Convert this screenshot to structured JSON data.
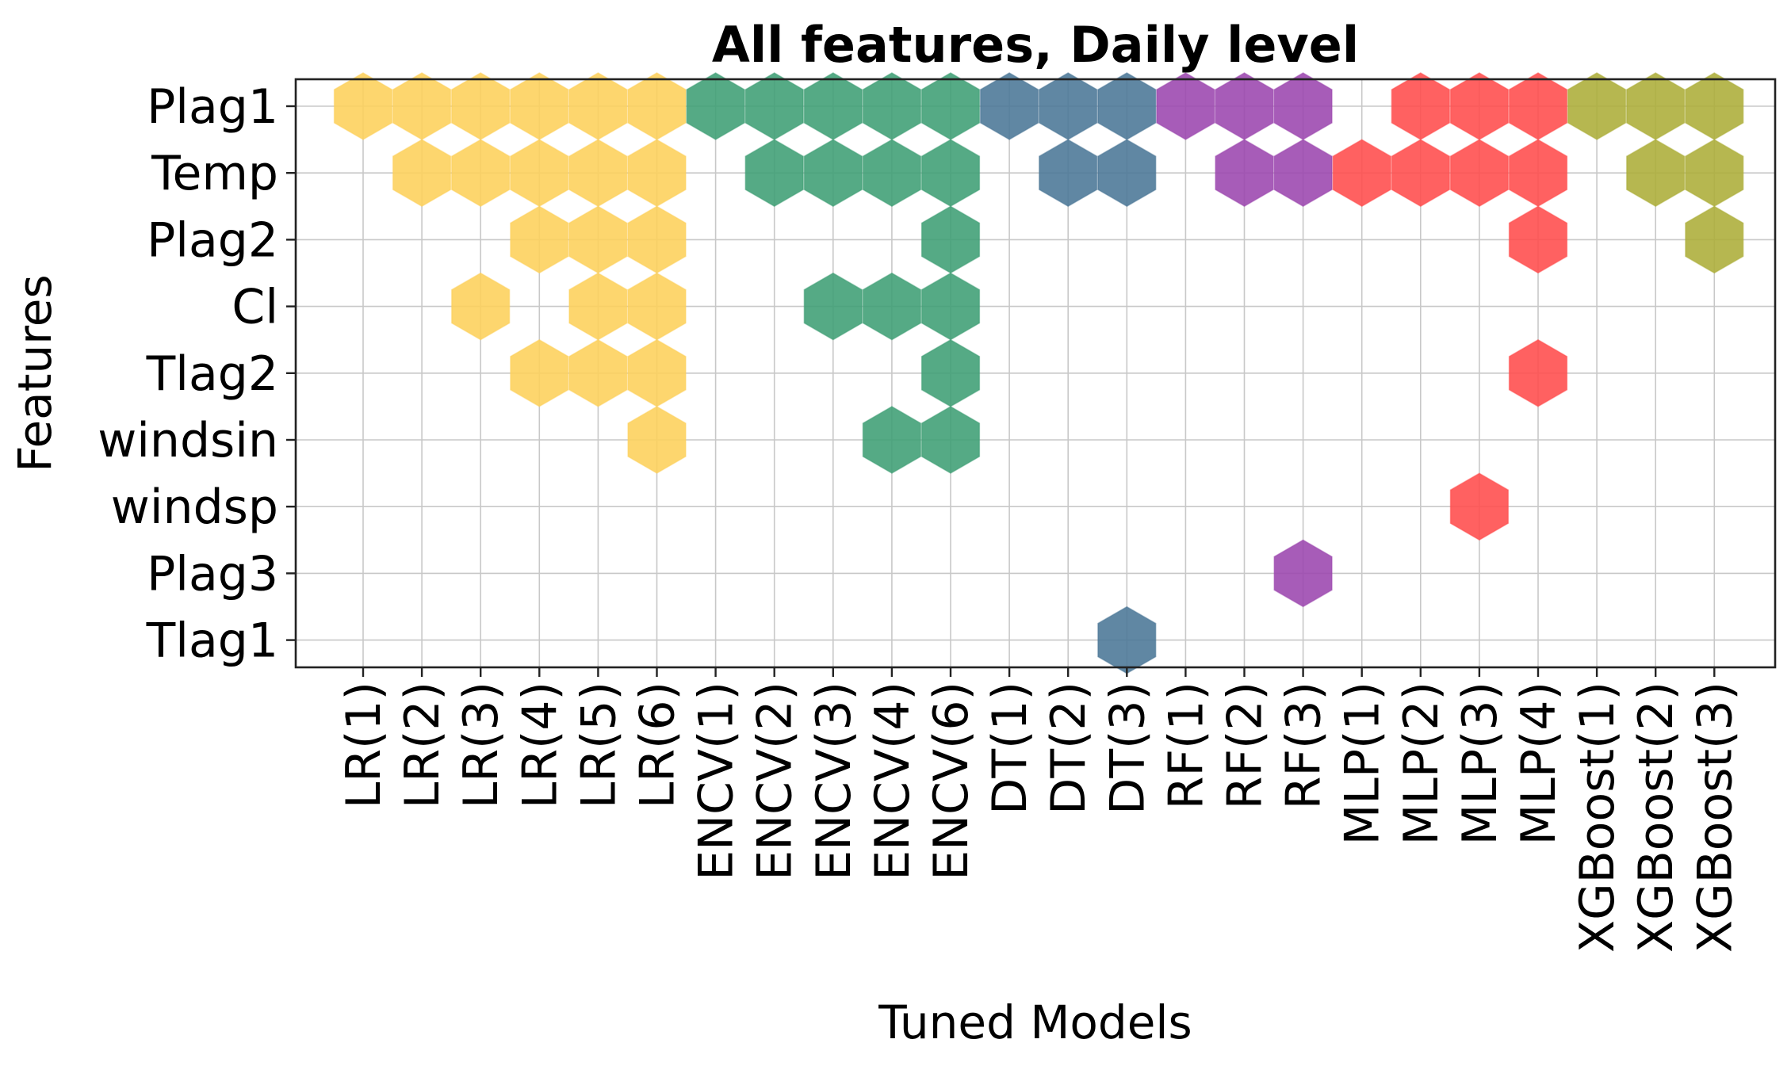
{
  "chart_data": {
    "type": "heatmap",
    "marker": "hexagon",
    "title": "All features, Daily level",
    "xlabel": "Tuned Models",
    "ylabel": "Features",
    "grid": true,
    "features": [
      "Plag1",
      "Temp",
      "Plag2",
      "Cl",
      "Tlag2",
      "windsin",
      "windsp",
      "Plag3",
      "Tlag1"
    ],
    "models": [
      "LR(1)",
      "LR(2)",
      "LR(3)",
      "LR(4)",
      "LR(5)",
      "LR(6)",
      "ENCV(1)",
      "ENCV(2)",
      "ENCV(3)",
      "ENCV(4)",
      "ENCV(6)",
      "DT(1)",
      "DT(2)",
      "DT(3)",
      "RF(1)",
      "RF(2)",
      "RF(3)",
      "MLP(1)",
      "MLP(2)",
      "MLP(3)",
      "MLP(4)",
      "XGBoost(1)",
      "XGBoost(2)",
      "XGBoost(3)"
    ],
    "groups": [
      {
        "name": "LR",
        "color": "#FDD05A",
        "models": [
          "LR(1)",
          "LR(2)",
          "LR(3)",
          "LR(4)",
          "LR(5)",
          "LR(6)"
        ]
      },
      {
        "name": "ENCV",
        "color": "#3E9E74",
        "models": [
          "ENCV(1)",
          "ENCV(2)",
          "ENCV(3)",
          "ENCV(4)",
          "ENCV(6)"
        ]
      },
      {
        "name": "DT",
        "color": "#4A7696",
        "models": [
          "DT(1)",
          "DT(2)",
          "DT(3)"
        ]
      },
      {
        "name": "RF",
        "color": "#9B46AE",
        "models": [
          "RF(1)",
          "RF(2)",
          "RF(3)"
        ]
      },
      {
        "name": "MLP",
        "color": "#FF4B4B",
        "models": [
          "MLP(1)",
          "MLP(2)",
          "MLP(3)",
          "MLP(4)"
        ]
      },
      {
        "name": "XGBoost",
        "color": "#ACAD38",
        "models": [
          "XGBoost(1)",
          "XGBoost(2)",
          "XGBoost(3)"
        ]
      }
    ],
    "selected": {
      "LR(1)": [
        "Plag1"
      ],
      "LR(2)": [
        "Plag1",
        "Temp"
      ],
      "LR(3)": [
        "Plag1",
        "Temp",
        "Cl"
      ],
      "LR(4)": [
        "Plag1",
        "Temp",
        "Plag2",
        "Tlag2"
      ],
      "LR(5)": [
        "Plag1",
        "Temp",
        "Plag2",
        "Cl",
        "Tlag2"
      ],
      "LR(6)": [
        "Plag1",
        "Temp",
        "Plag2",
        "Cl",
        "Tlag2",
        "windsin"
      ],
      "ENCV(1)": [
        "Plag1"
      ],
      "ENCV(2)": [
        "Plag1",
        "Temp"
      ],
      "ENCV(3)": [
        "Plag1",
        "Temp",
        "Cl"
      ],
      "ENCV(4)": [
        "Plag1",
        "Temp",
        "Cl",
        "windsin"
      ],
      "ENCV(6)": [
        "Plag1",
        "Temp",
        "Plag2",
        "Cl",
        "Tlag2",
        "windsin"
      ],
      "DT(1)": [
        "Plag1"
      ],
      "DT(2)": [
        "Plag1",
        "Temp"
      ],
      "DT(3)": [
        "Plag1",
        "Temp",
        "Tlag1"
      ],
      "RF(1)": [
        "Plag1"
      ],
      "RF(2)": [
        "Plag1",
        "Temp"
      ],
      "RF(3)": [
        "Plag1",
        "Temp",
        "Plag3"
      ],
      "MLP(1)": [
        "Temp"
      ],
      "MLP(2)": [
        "Plag1",
        "Temp"
      ],
      "MLP(3)": [
        "Plag1",
        "Temp",
        "windsp"
      ],
      "MLP(4)": [
        "Plag1",
        "Temp",
        "Plag2",
        "Tlag2"
      ],
      "XGBoost(1)": [
        "Plag1"
      ],
      "XGBoost(2)": [
        "Plag1",
        "Temp"
      ],
      "XGBoost(3)": [
        "Plag1",
        "Temp",
        "Plag2"
      ]
    }
  }
}
